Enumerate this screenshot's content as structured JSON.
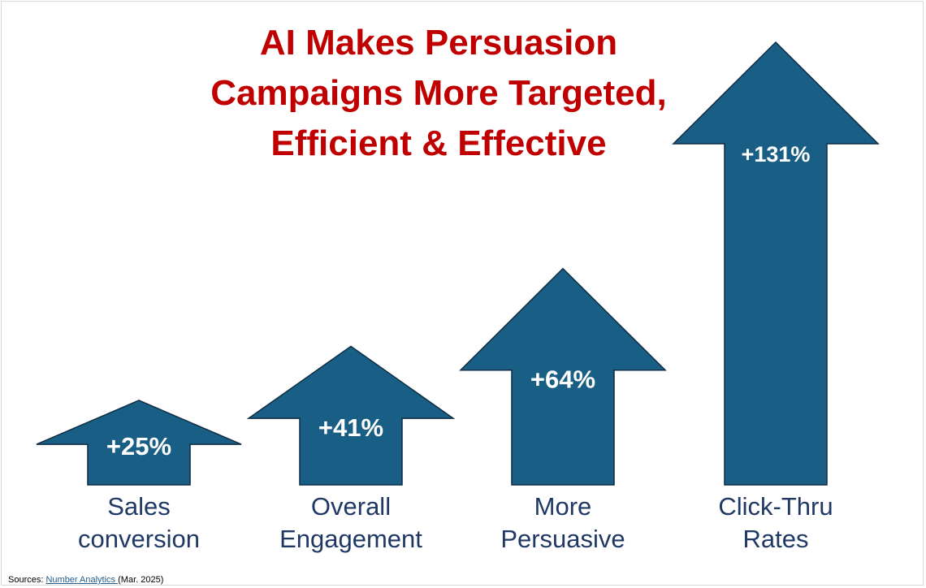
{
  "title_lines": [
    "AI Makes Persuasion",
    "Campaigns More Targeted,",
    "Efficient & Effective"
  ],
  "colors": {
    "title": "#c00000",
    "arrow_fill": "#195e84",
    "arrow_stroke": "#0f2d45",
    "value_label": "#ffffff",
    "category_label": "#1f3864"
  },
  "chart_data": {
    "type": "bar",
    "style": "up-arrows",
    "categories": [
      [
        "Sales",
        "conversion"
      ],
      [
        "Overall",
        "Engagement"
      ],
      [
        "More",
        "Persuasive"
      ],
      [
        "Click-Thru",
        "Rates"
      ]
    ],
    "values": [
      25,
      41,
      64,
      131
    ],
    "value_labels": [
      "+25%",
      "+41%",
      "+64%",
      "+131%"
    ],
    "unit": "%",
    "grid": false,
    "legend": "none"
  },
  "source": {
    "prefix": "Sources: ",
    "link_text": "Number Analytics ",
    "suffix": "(Mar. 2025)"
  }
}
